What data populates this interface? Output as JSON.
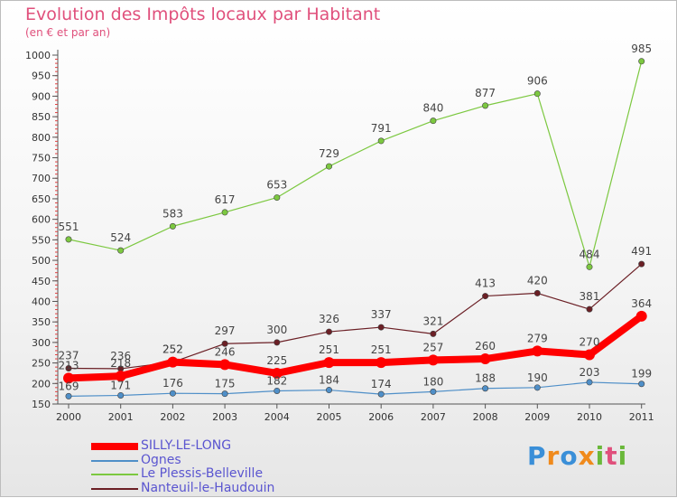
{
  "chart_data": {
    "type": "line",
    "title": "Evolution des Impôts locaux par Habitant",
    "subtitle": "(en € et par an)",
    "categories": [
      "2000",
      "2001",
      "2002",
      "2003",
      "2004",
      "2005",
      "2006",
      "2007",
      "2008",
      "2009",
      "2010",
      "2011"
    ],
    "ylim": [
      150,
      1000
    ],
    "yticks": [
      150,
      200,
      250,
      300,
      350,
      400,
      450,
      500,
      550,
      600,
      650,
      700,
      750,
      800,
      850,
      900,
      950,
      1000
    ],
    "grid": false,
    "legend_position": "bottom-left",
    "series": [
      {
        "name": "SILLY-LE-LONG",
        "color": "#ff0000",
        "values": [
          213,
          218,
          252,
          246,
          225,
          251,
          251,
          257,
          260,
          279,
          270,
          364
        ]
      },
      {
        "name": "Ognes",
        "color": "#4f8fc8",
        "values": [
          169,
          171,
          176,
          175,
          182,
          184,
          174,
          180,
          188,
          190,
          203,
          199
        ]
      },
      {
        "name": "Le Plessis-Belleville",
        "color": "#7cc840",
        "values": [
          551,
          524,
          583,
          617,
          653,
          729,
          791,
          840,
          877,
          906,
          484,
          985
        ]
      },
      {
        "name": "Nanteuil-le-Haudouin",
        "color": "#6b1f25",
        "values": [
          237,
          236,
          252,
          297,
          300,
          326,
          337,
          321,
          413,
          420,
          381,
          491
        ]
      }
    ]
  },
  "logo": {
    "text": "Proxiti"
  }
}
